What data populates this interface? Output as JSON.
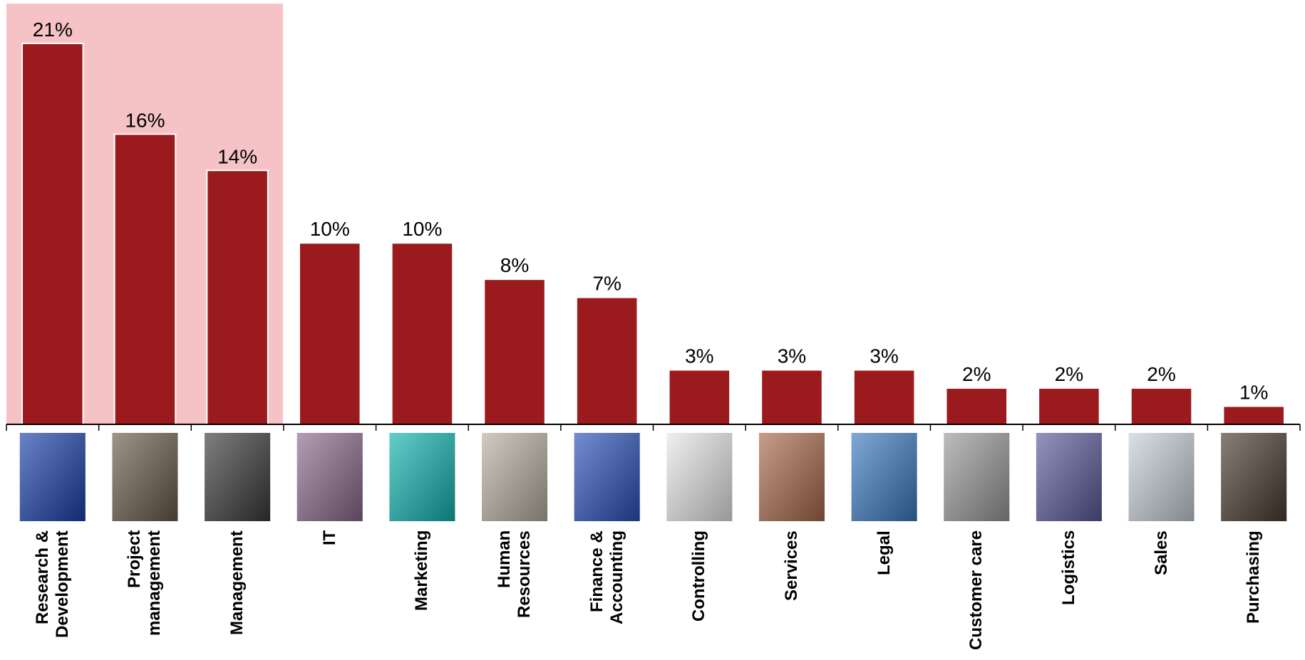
{
  "chart_data": {
    "type": "bar",
    "categories": [
      "Research &\nDevelopment",
      "Project\nmanagement",
      "Management",
      "IT",
      "Marketing",
      "Human\nResources",
      "Finance &\nAccounting",
      "Controlling",
      "Services",
      "Legal",
      "Customer care",
      "Logistics",
      "Sales",
      "Purchasing"
    ],
    "values": [
      21,
      16,
      14,
      10,
      10,
      8,
      7,
      3,
      3,
      3,
      2,
      2,
      2,
      1
    ],
    "value_labels": [
      "21%",
      "16%",
      "14%",
      "10%",
      "10%",
      "8%",
      "7%",
      "3%",
      "3%",
      "3%",
      "2%",
      "2%",
      "2%",
      "1%"
    ],
    "color": "#9b1a1d"
  }
}
